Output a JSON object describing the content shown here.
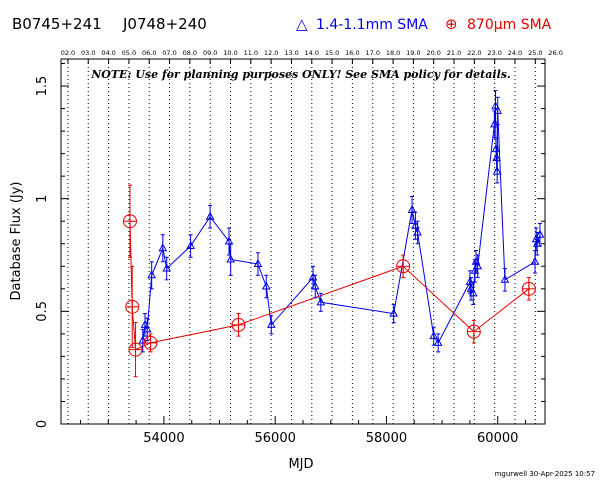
{
  "header": {
    "source_name": "B0745+241",
    "alt_name": "J0748+240",
    "legend_blue": "1.4-1.1mm SMA",
    "legend_red": "870μm SMA",
    "legend_blue_symbol": "△",
    "legend_red_symbol": "⊕"
  },
  "note": "NOTE: Use for planning purposes ONLY! See SMA policy for details.",
  "footer": "mgurwell 30-Apr-2025 10:57",
  "colors": {
    "blue": "#0000e6",
    "red": "#e60000",
    "axis": "#000000"
  },
  "chart_data": {
    "type": "scatter",
    "xlabel": "MJD",
    "ylabel": "Database Flux (Jy)",
    "xlim": [
      52150,
      60850
    ],
    "ylim": [
      0,
      1.62
    ],
    "grid": "vertical dotted lines at each year",
    "xticks": [
      54000,
      56000,
      58000,
      60000
    ],
    "xtick_labels": [
      "54000",
      "56000",
      "58000",
      "60000"
    ],
    "yticks": [
      0,
      0.5,
      1,
      1.5
    ],
    "ytick_labels": [
      "0",
      "0.5",
      "1",
      "1.5"
    ],
    "year_ticks": [
      52275,
      52640,
      53005,
      53371,
      53736,
      54101,
      54466,
      54832,
      55197,
      55562,
      55927,
      56293,
      56658,
      57023,
      57388,
      57754,
      58119,
      58484,
      58849,
      59215,
      59580,
      59945,
      60310,
      60676
    ],
    "year_labels": [
      "02.0",
      "03.0",
      "04.0",
      "05.0",
      "06.0",
      "07.0",
      "08.0",
      "09.0",
      "10.0",
      "11.0",
      "12.0",
      "13.0",
      "14.0",
      "15.0",
      "16.0",
      "17.0",
      "18.0",
      "19.0",
      "20.0",
      "21.0",
      "22.0",
      "23.0",
      "24.0",
      "25.0",
      "26.0"
    ],
    "year_label_positions": [
      52275,
      52640,
      53005,
      53371,
      53736,
      54101,
      54466,
      54832,
      55197,
      55562,
      55927,
      56293,
      56658,
      57023,
      57388,
      57754,
      58119,
      58484,
      58849,
      59215,
      59580,
      59945,
      60310,
      60676,
      61041
    ],
    "series": [
      {
        "name": "1.4-1.1mm SMA",
        "color": "#0000e6",
        "marker": "triangle",
        "points": [
          [
            53620,
            0.37,
            0.05
          ],
          [
            53660,
            0.44,
            0.05
          ],
          [
            53700,
            0.42,
            0.05
          ],
          [
            53780,
            0.66,
            0.06
          ],
          [
            53980,
            0.78,
            0.06
          ],
          [
            54050,
            0.69,
            0.05
          ],
          [
            54480,
            0.79,
            0.05
          ],
          [
            54830,
            0.92,
            0.05
          ],
          [
            55170,
            0.81,
            0.06
          ],
          [
            55200,
            0.73,
            0.07
          ],
          [
            55690,
            0.71,
            0.05
          ],
          [
            55840,
            0.61,
            0.05
          ],
          [
            55930,
            0.44,
            0.04
          ],
          [
            56680,
            0.65,
            0.05
          ],
          [
            56720,
            0.61,
            0.05
          ],
          [
            56820,
            0.54,
            0.04
          ],
          [
            58130,
            0.49,
            0.04
          ],
          [
            58460,
            0.95,
            0.06
          ],
          [
            58520,
            0.88,
            0.06
          ],
          [
            58560,
            0.85,
            0.05
          ],
          [
            58850,
            0.39,
            0.04
          ],
          [
            58930,
            0.36,
            0.04
          ],
          [
            59500,
            0.63,
            0.05
          ],
          [
            59520,
            0.6,
            0.05
          ],
          [
            59560,
            0.58,
            0.05
          ],
          [
            59590,
            0.68,
            0.05
          ],
          [
            59610,
            0.72,
            0.05
          ],
          [
            59640,
            0.7,
            0.05
          ],
          [
            59940,
            1.33,
            0.06
          ],
          [
            59960,
            1.41,
            0.07
          ],
          [
            59970,
            1.22,
            0.05
          ],
          [
            59980,
            1.18,
            0.05
          ],
          [
            59990,
            1.12,
            0.05
          ],
          [
            60000,
            1.39,
            0.06
          ],
          [
            60130,
            0.64,
            0.05
          ],
          [
            60670,
            0.72,
            0.05
          ],
          [
            60690,
            0.82,
            0.05
          ],
          [
            60710,
            0.8,
            0.05
          ],
          [
            60760,
            0.84,
            0.05
          ]
        ]
      },
      {
        "name": "870μm SMA",
        "color": "#e60000",
        "marker": "circle-plus",
        "points": [
          [
            53390,
            0.9,
            0.16
          ],
          [
            53430,
            0.52,
            0.18
          ],
          [
            53490,
            0.33,
            0.12
          ],
          [
            53760,
            0.36,
            0.04
          ],
          [
            55340,
            0.44,
            0.05
          ],
          [
            58300,
            0.7,
            0.05
          ],
          [
            59570,
            0.41,
            0.05
          ],
          [
            60560,
            0.6,
            0.05
          ]
        ]
      }
    ]
  }
}
